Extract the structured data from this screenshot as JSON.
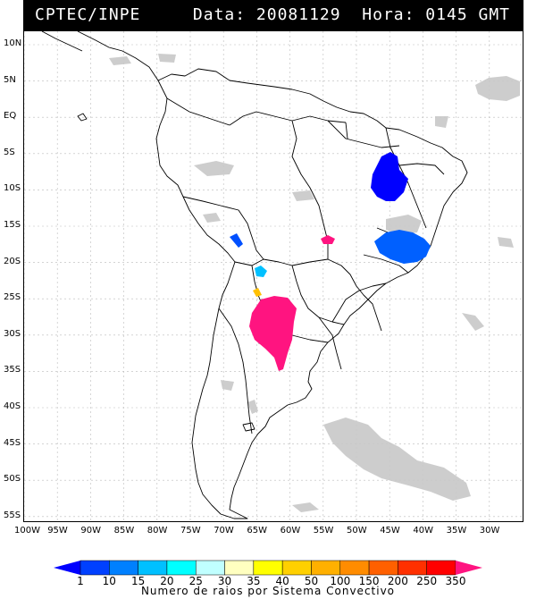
{
  "header": {
    "source": "CPTEC/INPE",
    "date_label": "Data: 20081129  Hora: 0145 GMT"
  },
  "map": {
    "lat_ticks": [
      "10N",
      "5N",
      "EQ",
      "5S",
      "10S",
      "15S",
      "20S",
      "25S",
      "30S",
      "35S",
      "40S",
      "45S",
      "50S",
      "55S"
    ],
    "lon_ticks": [
      "100W",
      "95W",
      "90W",
      "85W",
      "80W",
      "75W",
      "70W",
      "65W",
      "60W",
      "55W",
      "50W",
      "45W",
      "40W",
      "35W",
      "30W"
    ],
    "grid": true
  },
  "legend": {
    "title": "Numero de raios por Sistema Convectivo",
    "labels": [
      "1",
      "10",
      "15",
      "20",
      "25",
      "30",
      "35",
      "40",
      "50",
      "100",
      "150",
      "200",
      "250",
      "350"
    ],
    "colors": [
      "#0000ff",
      "#0040ff",
      "#0080ff",
      "#00c0ff",
      "#00ffff",
      "#c0ffff",
      "#ffffc0",
      "#ffff00",
      "#ffd000",
      "#ffb000",
      "#ff8c00",
      "#ff6000",
      "#ff3000",
      "#ff0000",
      "#ff1480"
    ]
  },
  "systems": [
    {
      "region": "northeast-brazil",
      "color": "#0000ff"
    },
    {
      "region": "east-brazil",
      "color": "#0060ff"
    },
    {
      "region": "peru-bolivia",
      "color": "#0050ff"
    },
    {
      "region": "paraguay-bolivia",
      "color": "#00c0ff"
    },
    {
      "region": "mato-grosso",
      "color": "#ff1480"
    },
    {
      "region": "argentina",
      "color": "#ff1480"
    },
    {
      "region": "argentina-north",
      "color": "#ffc000"
    }
  ]
}
